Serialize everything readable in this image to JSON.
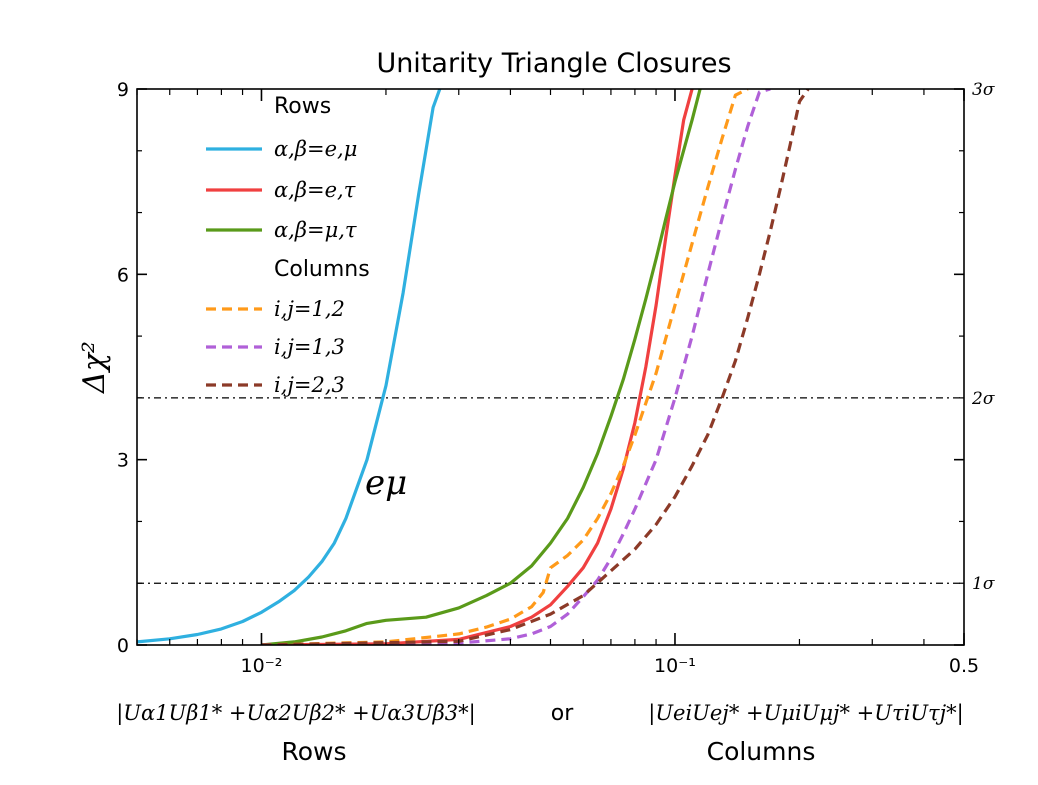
{
  "chart_data": {
    "type": "line",
    "title": "Unitarity  Triangle  Closures",
    "ylabel": "Δχ²",
    "xscale": "log",
    "xlim": [
      0.005,
      0.5
    ],
    "ylim": [
      0,
      9
    ],
    "grid": false,
    "legend_position": "top-center",
    "x_tick_labels": [
      "10⁻²",
      "10⁻¹",
      "0.5"
    ],
    "x_tick_values": [
      0.01,
      0.1,
      0.5
    ],
    "y_tick_labels": [
      "0",
      "3",
      "6",
      "9"
    ],
    "y_tick_values": [
      0,
      3,
      6,
      9
    ],
    "right_axis_labels": [
      {
        "y": 1,
        "label": "1σ"
      },
      {
        "y": 4,
        "label": "2σ"
      },
      {
        "y": 9,
        "label": "3σ"
      }
    ],
    "reference_lines": [
      1,
      4
    ],
    "xlabel_rows_formula": "|Uα1Uβ1* +Uα2Uβ2* +Uα3Uβ3*|",
    "xlabel_or": "or",
    "xlabel_cols_formula": "|UeiUej* +UμiUμj* +UτiUτj*|",
    "xlabel_rows": "Rows",
    "xlabel_cols": "Columns",
    "annotation": "eμ",
    "legend": {
      "rows_header": "Rows",
      "columns_header": "Columns"
    },
    "series": [
      {
        "name": "α,β=e,μ",
        "color": "#2fb0e0",
        "dash": "solid",
        "x": [
          0.005,
          0.006,
          0.007,
          0.008,
          0.009,
          0.01,
          0.011,
          0.012,
          0.013,
          0.014,
          0.015,
          0.016,
          0.018,
          0.02,
          0.022,
          0.024,
          0.026,
          0.027
        ],
        "y": [
          0.05,
          0.1,
          0.17,
          0.26,
          0.38,
          0.53,
          0.7,
          0.88,
          1.1,
          1.35,
          1.65,
          2.05,
          3.0,
          4.2,
          5.7,
          7.3,
          8.7,
          9.0
        ]
      },
      {
        "name": "α,β=e,τ",
        "color": "#f04040",
        "dash": "solid",
        "x": [
          0.01,
          0.02,
          0.03,
          0.04,
          0.045,
          0.05,
          0.055,
          0.06,
          0.065,
          0.07,
          0.075,
          0.08,
          0.085,
          0.09,
          0.095,
          0.1,
          0.105,
          0.11
        ],
        "y": [
          0.0,
          0.02,
          0.09,
          0.3,
          0.45,
          0.65,
          0.95,
          1.25,
          1.65,
          2.2,
          2.85,
          3.6,
          4.5,
          5.5,
          6.6,
          7.6,
          8.5,
          9.0
        ]
      },
      {
        "name": "α,β=μ,τ",
        "color": "#5a9a1a",
        "dash": "solid",
        "x": [
          0.01,
          0.012,
          0.014,
          0.016,
          0.018,
          0.02,
          0.025,
          0.03,
          0.035,
          0.04,
          0.045,
          0.05,
          0.055,
          0.06,
          0.065,
          0.07,
          0.075,
          0.08,
          0.085,
          0.09,
          0.095,
          0.1,
          0.11,
          0.115
        ],
        "y": [
          0.0,
          0.05,
          0.13,
          0.23,
          0.35,
          0.4,
          0.45,
          0.6,
          0.8,
          1.0,
          1.28,
          1.65,
          2.05,
          2.55,
          3.1,
          3.7,
          4.3,
          4.95,
          5.6,
          6.25,
          6.9,
          7.5,
          8.5,
          9.0
        ]
      },
      {
        "name": "i,j=1,2",
        "color": "#ff9a1a",
        "dash": "dashed",
        "x": [
          0.01,
          0.02,
          0.03,
          0.035,
          0.04,
          0.045,
          0.048,
          0.05,
          0.055,
          0.06,
          0.065,
          0.07,
          0.075,
          0.08,
          0.09,
          0.1,
          0.11,
          0.12,
          0.13,
          0.14,
          0.15
        ],
        "y": [
          0.0,
          0.05,
          0.18,
          0.29,
          0.42,
          0.62,
          0.85,
          1.25,
          1.45,
          1.7,
          2.05,
          2.45,
          2.9,
          3.4,
          4.4,
          5.5,
          6.5,
          7.4,
          8.2,
          8.9,
          9.0
        ]
      },
      {
        "name": "i,j=1,3",
        "color": "#b060d8",
        "dash": "dashed",
        "x": [
          0.01,
          0.03,
          0.04,
          0.045,
          0.05,
          0.055,
          0.06,
          0.065,
          0.07,
          0.075,
          0.08,
          0.09,
          0.1,
          0.11,
          0.12,
          0.13,
          0.14,
          0.15,
          0.16,
          0.17
        ],
        "y": [
          0.0,
          0.03,
          0.1,
          0.18,
          0.3,
          0.5,
          0.78,
          1.05,
          1.4,
          1.8,
          2.2,
          3.0,
          4.0,
          5.0,
          6.0,
          6.9,
          7.7,
          8.4,
          8.95,
          9.0
        ]
      },
      {
        "name": "i,j=2,3",
        "color": "#8c3a28",
        "dash": "dashed",
        "x": [
          0.01,
          0.03,
          0.04,
          0.05,
          0.06,
          0.07,
          0.08,
          0.09,
          0.1,
          0.11,
          0.12,
          0.13,
          0.14,
          0.15,
          0.16,
          0.17,
          0.18,
          0.19,
          0.2,
          0.21
        ],
        "y": [
          0.0,
          0.06,
          0.25,
          0.5,
          0.8,
          1.2,
          1.55,
          1.95,
          2.4,
          2.9,
          3.4,
          4.0,
          4.6,
          5.3,
          6.0,
          6.7,
          7.4,
          8.1,
          8.8,
          9.0
        ]
      }
    ]
  }
}
